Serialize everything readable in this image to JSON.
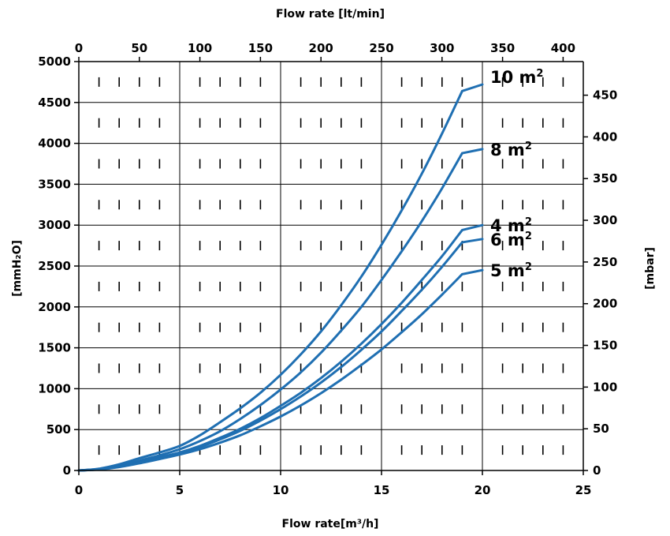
{
  "chart_data": {
    "type": "line",
    "title": "",
    "xlabel": "Flow rate[m³/h]",
    "x2label": "Flow rate [lt/min]",
    "ylabel": "[mmH₂O]",
    "y2label": "[mbar]",
    "xlim": [
      0,
      25
    ],
    "ylim": [
      0,
      5000
    ],
    "x2lim": [
      0,
      416.67
    ],
    "y2lim": [
      0,
      490.3
    ],
    "x_ticks": [
      0,
      5,
      10,
      15,
      20,
      25
    ],
    "y_ticks": [
      0,
      500,
      1000,
      1500,
      2000,
      2500,
      3000,
      3500,
      4000,
      4500,
      5000
    ],
    "x2_ticks": [
      0,
      50,
      100,
      150,
      200,
      250,
      300,
      350,
      400
    ],
    "y2_ticks": [
      0,
      50,
      100,
      150,
      200,
      250,
      300,
      350,
      400,
      450
    ],
    "grid": true,
    "line_color": "#1f6fb2",
    "x": [
      0,
      1,
      2,
      3,
      4,
      5,
      6,
      7,
      8,
      9,
      10,
      11,
      12,
      13,
      14,
      15,
      16,
      17,
      18,
      19,
      20
    ],
    "series": [
      {
        "name": "10 m²",
        "label_text": "10 m",
        "values": [
          0,
          22,
          75,
          150,
          220,
          300,
          430,
          590,
          760,
          950,
          1170,
          1420,
          1700,
          2020,
          2370,
          2760,
          3180,
          3630,
          4120,
          4640,
          4720
        ]
      },
      {
        "name": "8 m²",
        "label_text": "8 m",
        "values": [
          0,
          18,
          60,
          120,
          185,
          260,
          360,
          480,
          630,
          800,
          990,
          1200,
          1440,
          1710,
          2000,
          2330,
          2680,
          3050,
          3450,
          3880,
          3930
        ]
      },
      {
        "name": "4 m²",
        "label_text": "4 m",
        "values": [
          0,
          14,
          50,
          100,
          160,
          220,
          300,
          400,
          510,
          640,
          790,
          950,
          1130,
          1330,
          1550,
          1790,
          2050,
          2330,
          2620,
          2940,
          3000
        ]
      },
      {
        "name": "6 m²",
        "label_text": "6 m",
        "values": [
          0,
          13,
          46,
          95,
          150,
          210,
          285,
          380,
          485,
          610,
          750,
          905,
          1075,
          1265,
          1475,
          1700,
          1950,
          2210,
          2490,
          2790,
          2830
        ]
      },
      {
        "name": "5 m²",
        "label_text": "5 m",
        "values": [
          0,
          12,
          42,
          88,
          140,
          195,
          260,
          340,
          430,
          540,
          660,
          795,
          945,
          1110,
          1290,
          1480,
          1690,
          1910,
          2150,
          2400,
          2450
        ]
      }
    ]
  }
}
